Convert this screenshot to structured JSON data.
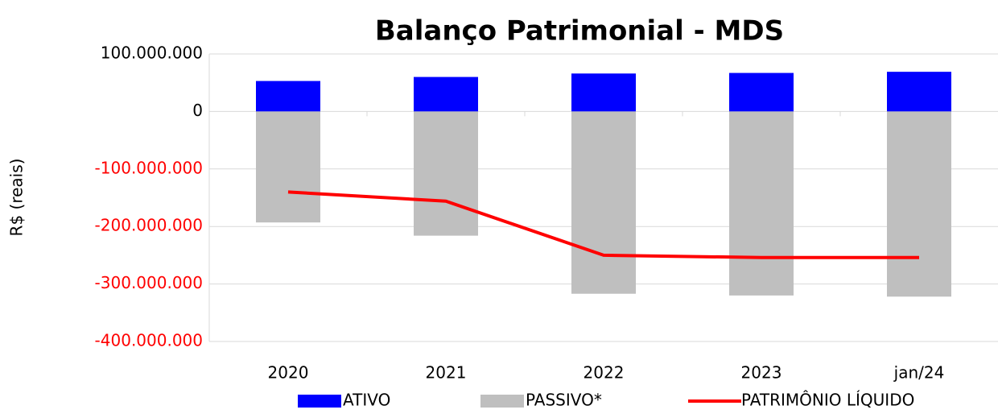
{
  "chart_data": {
    "type": "bar",
    "title": "Balanço Patrimonial - MDS",
    "y_label": "R$ (reais)",
    "categories": [
      "2020",
      "2021",
      "2022",
      "2023",
      "jan/24"
    ],
    "series": [
      {
        "name": "ATIVO",
        "color": "#0000ff",
        "type": "bar",
        "values": [
          53000000,
          60000000,
          66000000,
          67000000,
          69000000
        ]
      },
      {
        "name": "PASSIVO*",
        "color": "#bfbfbf",
        "type": "bar",
        "values": [
          -193000000,
          -216000000,
          -317000000,
          -320000000,
          -322000000
        ]
      },
      {
        "name": "PATRIMÔNIO LÍQUIDO",
        "color": "#ff0000",
        "type": "line",
        "values": [
          -140000000,
          -156000000,
          -250000000,
          -254000000,
          -254000000
        ]
      }
    ],
    "ylim": [
      -400000000,
      100000000
    ],
    "yticks": [
      {
        "value": 100000000,
        "label": "100.000.000"
      },
      0,
      {
        "value": -100000000,
        "label": "-100.000.000"
      },
      {
        "value": -200000000,
        "label": "-200.000.000"
      },
      {
        "value": -300000000,
        "label": "-300.000.000"
      },
      {
        "value": -400000000,
        "label": "-400.000.000"
      }
    ],
    "grid": true,
    "negative_tick_color": "#ff0000",
    "legend": "bottom"
  }
}
